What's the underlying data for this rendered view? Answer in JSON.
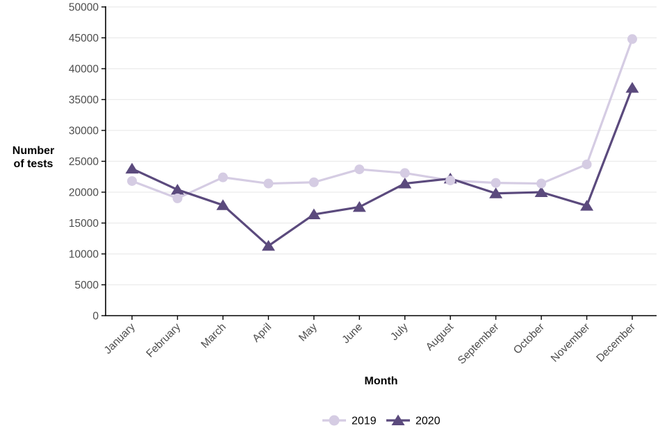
{
  "chart_data": {
    "type": "line",
    "title": "",
    "xlabel": "Month",
    "ylabel": "Number\nof tests",
    "categories": [
      "January",
      "February",
      "March",
      "April",
      "May",
      "June",
      "July",
      "August",
      "September",
      "October",
      "November",
      "December"
    ],
    "series": [
      {
        "name": "2019",
        "marker": "circle",
        "color": "#d5cce3",
        "values": [
          21800,
          19000,
          22400,
          21400,
          21600,
          23700,
          23100,
          21900,
          21500,
          21400,
          24500,
          44800
        ]
      },
      {
        "name": "2020",
        "marker": "triangle",
        "color": "#5b4a7d",
        "values": [
          23800,
          20400,
          17900,
          11300,
          16400,
          17600,
          21400,
          22200,
          19800,
          20000,
          17800,
          36900
        ]
      }
    ],
    "ylim": [
      0,
      50000
    ],
    "y_ticks": [
      0,
      5000,
      10000,
      15000,
      20000,
      25000,
      30000,
      35000,
      40000,
      45000,
      50000
    ],
    "grid": "horizontal-major-only",
    "legend_position": "bottom-center",
    "colors": {
      "grid": "#ebebeb",
      "axis": "#000000",
      "tick_label": "#4d4d4d",
      "background": "#ffffff"
    }
  }
}
